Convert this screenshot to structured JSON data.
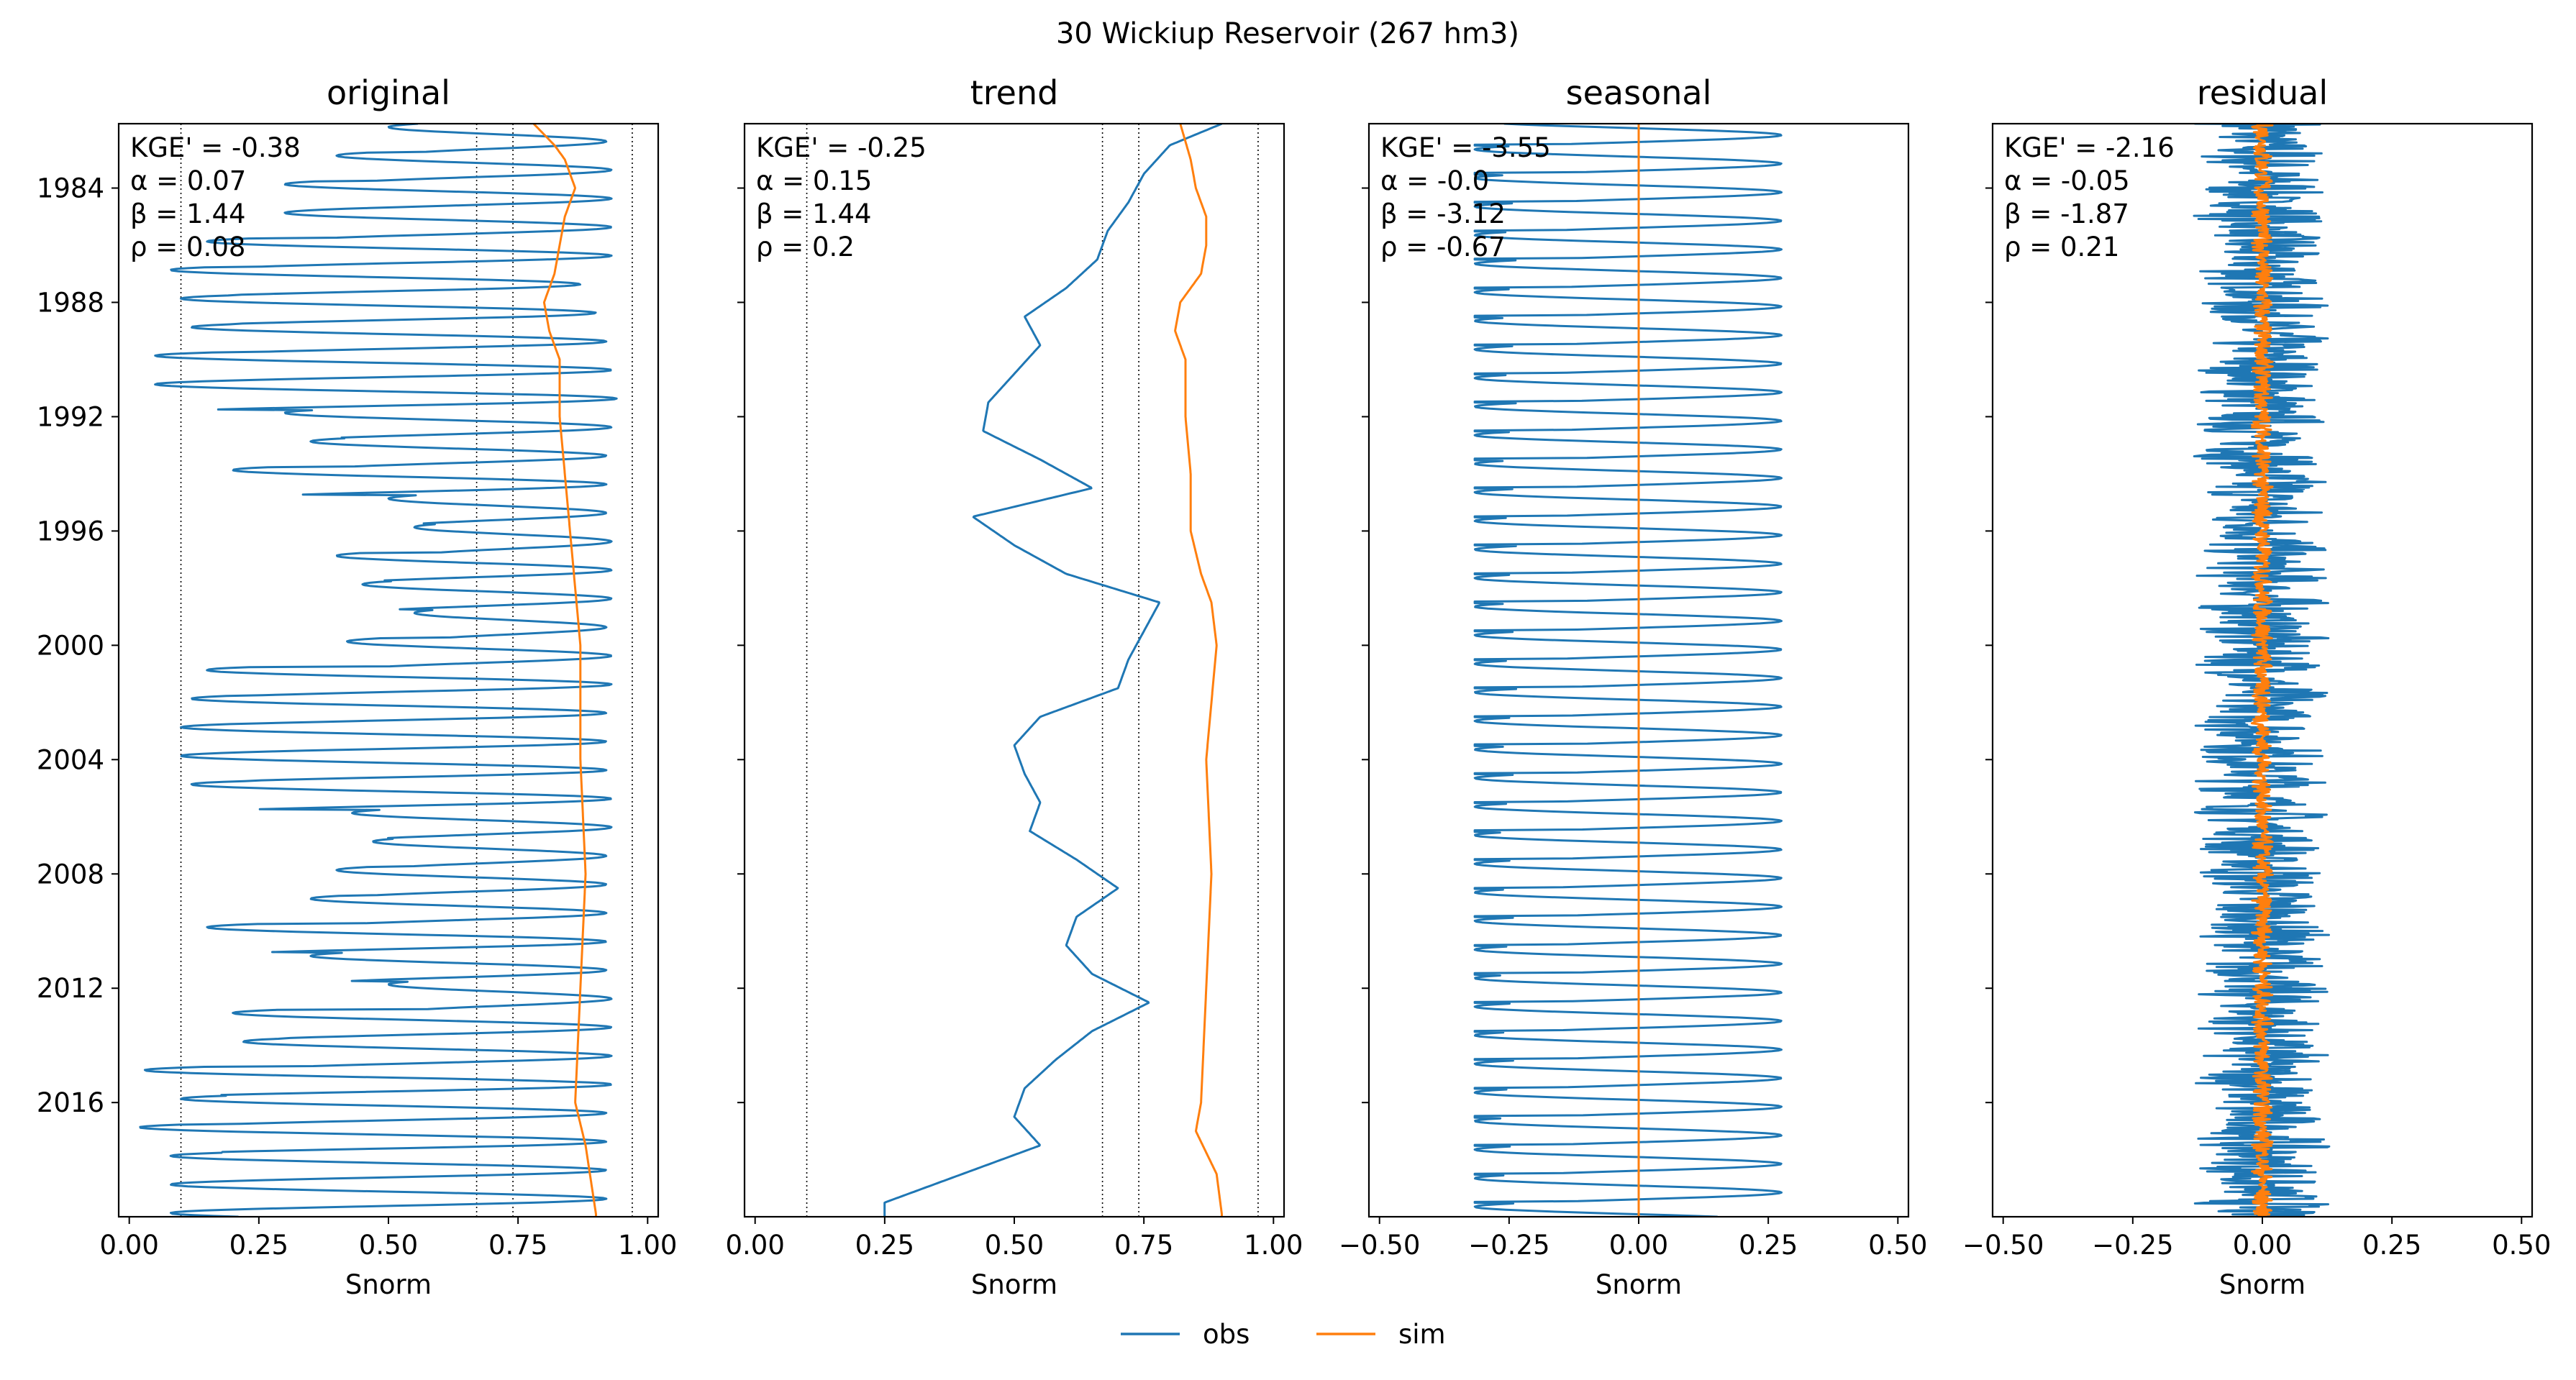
{
  "figure": {
    "suptitle": "30  Wickiup Reservoir (267 hm3)",
    "legend": [
      {
        "label": "obs",
        "color": "#1f77b4"
      },
      {
        "label": "sim",
        "color": "#ff7f0e"
      }
    ],
    "y_axis": {
      "date_range": [
        "1981-10-01",
        "2019-12-31"
      ],
      "ticks": [
        "1984",
        "1988",
        "1992",
        "1996",
        "2000",
        "2004",
        "2008",
        "2012",
        "2016"
      ]
    },
    "colors": {
      "obs": "#1f77b4",
      "sim": "#ff7f0e",
      "reference_lines": "#000000"
    }
  },
  "chart_data": [
    {
      "type": "line",
      "title": "original",
      "xlabel": "Snorm",
      "xlim": [
        -0.02,
        1.02
      ],
      "xticks": [
        "0.00",
        "0.25",
        "0.50",
        "0.75",
        "1.00"
      ],
      "reference_lines_x": [
        0.1,
        0.67,
        0.74,
        0.97
      ],
      "metrics": [
        "KGE' = -0.38",
        "α = 0.07",
        "β = 1.44",
        "ρ = 0.08"
      ],
      "obs": {
        "kind": "annual_cycle",
        "high": [
          0.92,
          0.93,
          0.93,
          0.93,
          0.93,
          0.87,
          0.9,
          0.92,
          0.93,
          0.94,
          0.93,
          0.92,
          0.92,
          0.92,
          0.93,
          0.93,
          0.93,
          0.92,
          0.93,
          0.93,
          0.92,
          0.92,
          0.92,
          0.93,
          0.93,
          0.92,
          0.92,
          0.92,
          0.92,
          0.92,
          0.93,
          0.93,
          0.93,
          0.93,
          0.92,
          0.92,
          0.92
        ],
        "low": [
          0.5,
          0.4,
          0.3,
          0.3,
          0.15,
          0.08,
          0.1,
          0.12,
          0.05,
          0.05,
          0.3,
          0.35,
          0.2,
          0.5,
          0.55,
          0.4,
          0.45,
          0.55,
          0.42,
          0.15,
          0.12,
          0.1,
          0.1,
          0.12,
          0.43,
          0.47,
          0.4,
          0.35,
          0.15,
          0.35,
          0.5,
          0.2,
          0.22,
          0.03,
          0.1,
          0.02,
          0.08
        ]
      },
      "sim": {
        "kind": "slow",
        "years": [
          1981.75,
          1982.5,
          1983.0,
          1984.0,
          1985.0,
          1986.0,
          1987.0,
          1988.0,
          1989.0,
          1990.0,
          1992.0,
          1994.0,
          1996.0,
          1998.0,
          2000.0,
          2004.0,
          2008.0,
          2012.0,
          2016.0,
          2017.5,
          2019.9
        ],
        "values": [
          0.78,
          0.82,
          0.84,
          0.86,
          0.84,
          0.83,
          0.82,
          0.8,
          0.81,
          0.83,
          0.83,
          0.84,
          0.85,
          0.86,
          0.87,
          0.87,
          0.88,
          0.87,
          0.86,
          0.88,
          0.9
        ]
      }
    },
    {
      "type": "line",
      "title": "trend",
      "xlabel": "Snorm",
      "xlim": [
        -0.02,
        1.02
      ],
      "xticks": [
        "0.00",
        "0.25",
        "0.50",
        "0.75",
        "1.00"
      ],
      "reference_lines_x": [
        0.1,
        0.67,
        0.74,
        0.97
      ],
      "metrics": [
        "KGE' = -0.25",
        "α = 0.15",
        "β = 1.44",
        "ρ = 0.2"
      ],
      "obs": {
        "kind": "slow",
        "years": [
          1981.75,
          1982.5,
          1983.5,
          1984.5,
          1985.5,
          1986.5,
          1987.5,
          1988.5,
          1989.5,
          1990.5,
          1991.5,
          1992.5,
          1993.5,
          1994.5,
          1995.5,
          1996.5,
          1997.5,
          1998.5,
          1999.5,
          2000.5,
          2001.5,
          2002.5,
          2003.5,
          2004.5,
          2005.5,
          2006.5,
          2007.5,
          2008.5,
          2009.5,
          2010.5,
          2011.5,
          2012.5,
          2013.5,
          2014.5,
          2015.5,
          2016.5,
          2017.5,
          2018.5,
          2019.5
        ],
        "values": [
          0.9,
          0.8,
          0.75,
          0.72,
          0.68,
          0.66,
          0.6,
          0.52,
          0.55,
          0.5,
          0.45,
          0.44,
          0.55,
          0.65,
          0.42,
          0.5,
          0.6,
          0.78,
          0.75,
          0.72,
          0.7,
          0.55,
          0.5,
          0.52,
          0.55,
          0.53,
          0.62,
          0.7,
          0.62,
          0.6,
          0.65,
          0.76,
          0.65,
          0.58,
          0.52,
          0.5,
          0.55,
          0.4,
          0.25
        ]
      },
      "sim": {
        "kind": "slow",
        "years": [
          1981.75,
          1983.0,
          1984.0,
          1985.0,
          1986.0,
          1987.0,
          1988.0,
          1989.0,
          1990.0,
          1992.0,
          1994.0,
          1996.0,
          1997.5,
          1998.5,
          2000.0,
          2004.0,
          2008.0,
          2012.0,
          2016.0,
          2017.0,
          2018.5,
          2019.9
        ],
        "values": [
          0.82,
          0.84,
          0.85,
          0.87,
          0.87,
          0.86,
          0.82,
          0.81,
          0.83,
          0.83,
          0.84,
          0.84,
          0.86,
          0.88,
          0.89,
          0.87,
          0.88,
          0.87,
          0.86,
          0.85,
          0.89,
          0.9
        ]
      }
    },
    {
      "type": "line",
      "title": "seasonal",
      "xlabel": "Snorm",
      "xlim": [
        -0.51,
        0.51
      ],
      "xticks": [
        "−0.50",
        "−0.25",
        "0.00",
        "0.25",
        "0.50"
      ],
      "reference_lines_x": [],
      "metrics": [
        "KGE' = -3.55",
        "α = -0.0",
        "β = -3.12",
        "ρ = -0.67"
      ],
      "obs": {
        "kind": "seasonal_cycle",
        "high": 0.27,
        "low": -0.31
      },
      "sim": {
        "kind": "constant",
        "value": 0.0
      }
    },
    {
      "type": "line",
      "title": "residual",
      "xlabel": "Snorm",
      "xlim": [
        -0.51,
        0.51
      ],
      "xticks": [
        "−0.50",
        "−0.25",
        "0.00",
        "0.25",
        "0.50"
      ],
      "reference_lines_x": [],
      "metrics": [
        "KGE' = -2.16",
        "α = -0.05",
        "β = -1.87",
        "ρ = 0.21"
      ],
      "obs": {
        "kind": "noise",
        "amplitude": 0.13
      },
      "sim": {
        "kind": "noise",
        "amplitude": 0.02
      }
    }
  ]
}
